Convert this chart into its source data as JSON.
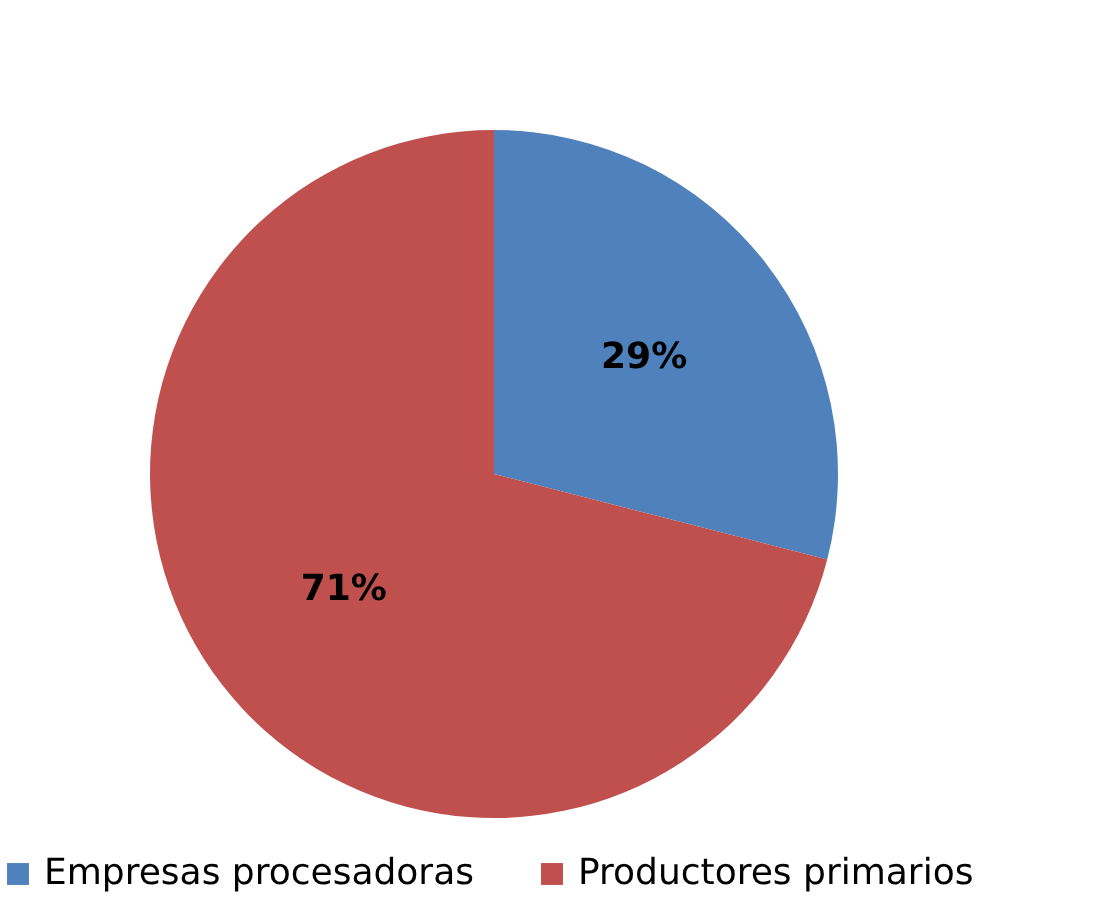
{
  "chart_data": {
    "type": "pie",
    "categories": [
      "Empresas procesadoras",
      "Productores primarios"
    ],
    "values": [
      29,
      71
    ],
    "colors": [
      "#4f81bd",
      "#c0504d"
    ],
    "value_labels": [
      "29%",
      "71%"
    ],
    "legend": "bottom"
  }
}
